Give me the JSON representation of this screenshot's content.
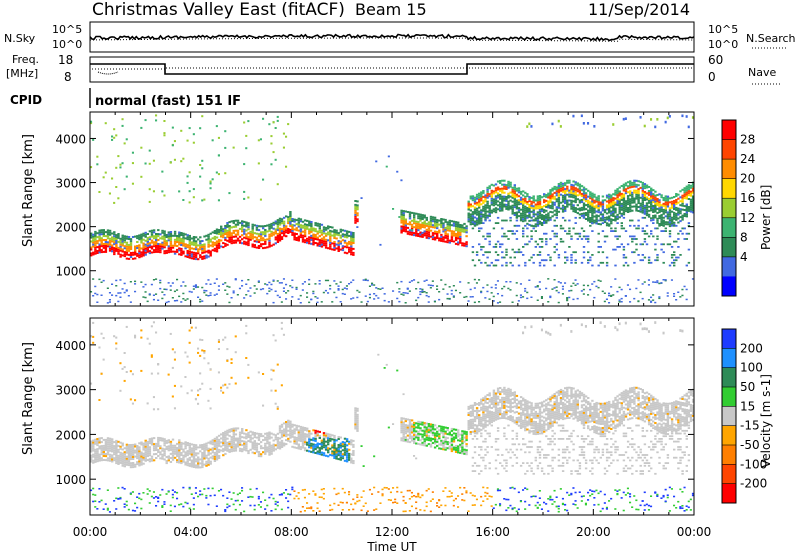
{
  "header": {
    "title": "Christmas Valley East (fitACF)",
    "beam": "Beam 15",
    "date": "11/Sep/2014"
  },
  "top_panels": {
    "nsky_label": "N.Sky",
    "nsearch_label": "N.Search",
    "noise_ticks": [
      "10^5",
      "10^0"
    ],
    "freq_label_1": "Freq.",
    "freq_label_2": "[MHz]",
    "freq_ticks": [
      "18",
      "8"
    ],
    "nave_label": "Nave",
    "nave_ticks": [
      "60",
      "0"
    ],
    "cpid_label": "CPID",
    "cpid_text": "normal (fast) 151 IF"
  },
  "chart_data": [
    {
      "type": "heatmap",
      "name": "power",
      "ylabel": "Slant Range [km]",
      "ylim": [
        200,
        4600
      ],
      "yticks": [
        "4000",
        "3000",
        "2000",
        "1000"
      ],
      "colorbar_label": "Power [dB]",
      "colorbar_ticks": [
        "28",
        "24",
        "20",
        "16",
        "12",
        "8",
        "4"
      ],
      "colorbar_colors": [
        "#ff0000",
        "#ff4500",
        "#ff8c00",
        "#ffd700",
        "#9acd32",
        "#3cb371",
        "#2e8b57",
        "#4169e1",
        "#0000ff"
      ],
      "grid": false
    },
    {
      "type": "heatmap",
      "name": "velocity",
      "ylabel": "Slant Range [km]",
      "ylim": [
        200,
        4600
      ],
      "yticks": [
        "4000",
        "3000",
        "2000",
        "1000"
      ],
      "colorbar_label": "Velocity [m s-1]",
      "colorbar_ticks": [
        "200",
        "100",
        "50",
        "15",
        "-15",
        "-50",
        "-100",
        "-200"
      ],
      "colorbar_colors": [
        "#1e3cff",
        "#1e90ff",
        "#2e8b57",
        "#32cd32",
        "#c8c8c8",
        "#ffa500",
        "#ff7f00",
        "#ff4500",
        "#ff0000"
      ],
      "grid": false
    }
  ],
  "xaxis": {
    "label": "Time UT",
    "ticks": [
      "00:00",
      "04:00",
      "08:00",
      "12:00",
      "16:00",
      "20:00",
      "00:00"
    ]
  }
}
